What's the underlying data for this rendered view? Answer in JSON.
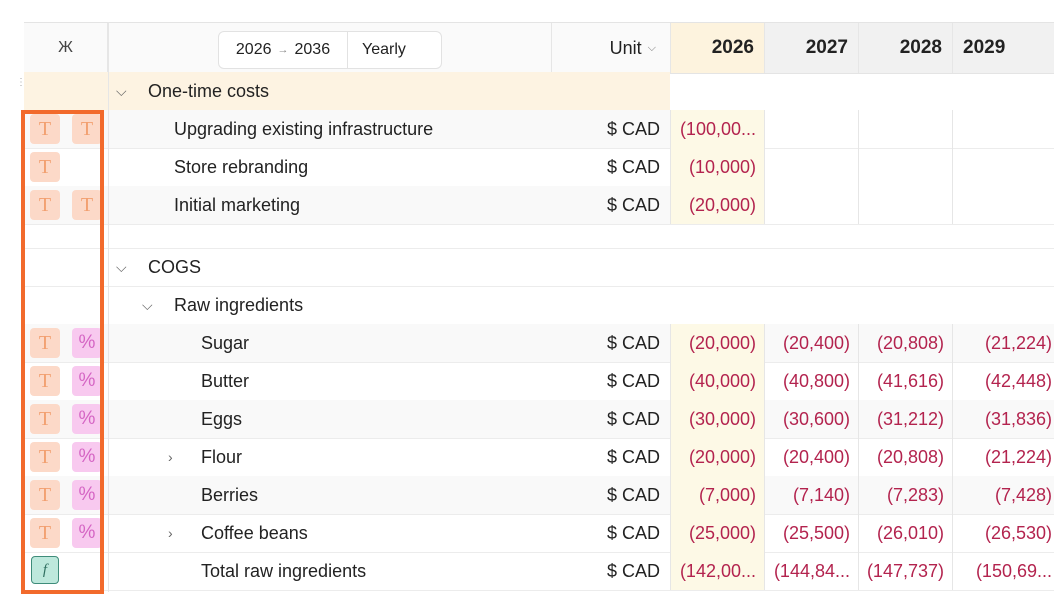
{
  "header": {
    "column_toggle": "Ж",
    "range_start": "2026",
    "range_arrow": "→",
    "range_end": "2036",
    "period": "Yearly",
    "unit_label": "Unit",
    "years": [
      "2026",
      "2027",
      "2028",
      "2029"
    ]
  },
  "icons": {
    "text_glyph": "T",
    "percent_glyph": "%",
    "formula_glyph": "f"
  },
  "sections": [
    {
      "title": "One-time costs"
    },
    {
      "title": "COGS"
    }
  ],
  "groups": [
    {
      "title": "Raw ingredients"
    }
  ],
  "one_time_rows": [
    {
      "label": "Upgrading existing infrastructure",
      "unit": "$ CAD",
      "values": [
        "(100,00...",
        "",
        "",
        ""
      ]
    },
    {
      "label": "Store rebranding",
      "unit": "$ CAD",
      "values": [
        "(10,000)",
        "",
        "",
        ""
      ]
    },
    {
      "label": "Initial marketing",
      "unit": "$ CAD",
      "values": [
        "(20,000)",
        "",
        "",
        ""
      ]
    }
  ],
  "cogs_rows": [
    {
      "label": "Sugar",
      "unit": "$ CAD",
      "values": [
        "(20,000)",
        "(20,400)",
        "(20,808)",
        "(21,224)"
      ]
    },
    {
      "label": "Butter",
      "unit": "$ CAD",
      "values": [
        "(40,000)",
        "(40,800)",
        "(41,616)",
        "(42,448)"
      ]
    },
    {
      "label": "Eggs",
      "unit": "$ CAD",
      "values": [
        "(30,000)",
        "(30,600)",
        "(31,212)",
        "(31,836)"
      ]
    },
    {
      "label": "Flour",
      "unit": "$ CAD",
      "values": [
        "(20,000)",
        "(20,400)",
        "(20,808)",
        "(21,224)"
      ]
    },
    {
      "label": "Berries",
      "unit": "$ CAD",
      "values": [
        "(7,000)",
        "(7,140)",
        "(7,283)",
        "(7,428)"
      ]
    },
    {
      "label": "Coffee beans",
      "unit": "$ CAD",
      "values": [
        "(25,000)",
        "(25,500)",
        "(26,010)",
        "(26,530)"
      ]
    },
    {
      "label": "Total raw ingredients",
      "unit": "$ CAD",
      "values": [
        "(142,00...",
        "(144,84...",
        "(147,737)",
        "(150,69..."
      ]
    }
  ],
  "colors": {
    "negative": "#b3234e",
    "highlight_column": "#fdf9e6",
    "selection_outline": "#f26a2c",
    "section_band": "#fdf3e2"
  }
}
